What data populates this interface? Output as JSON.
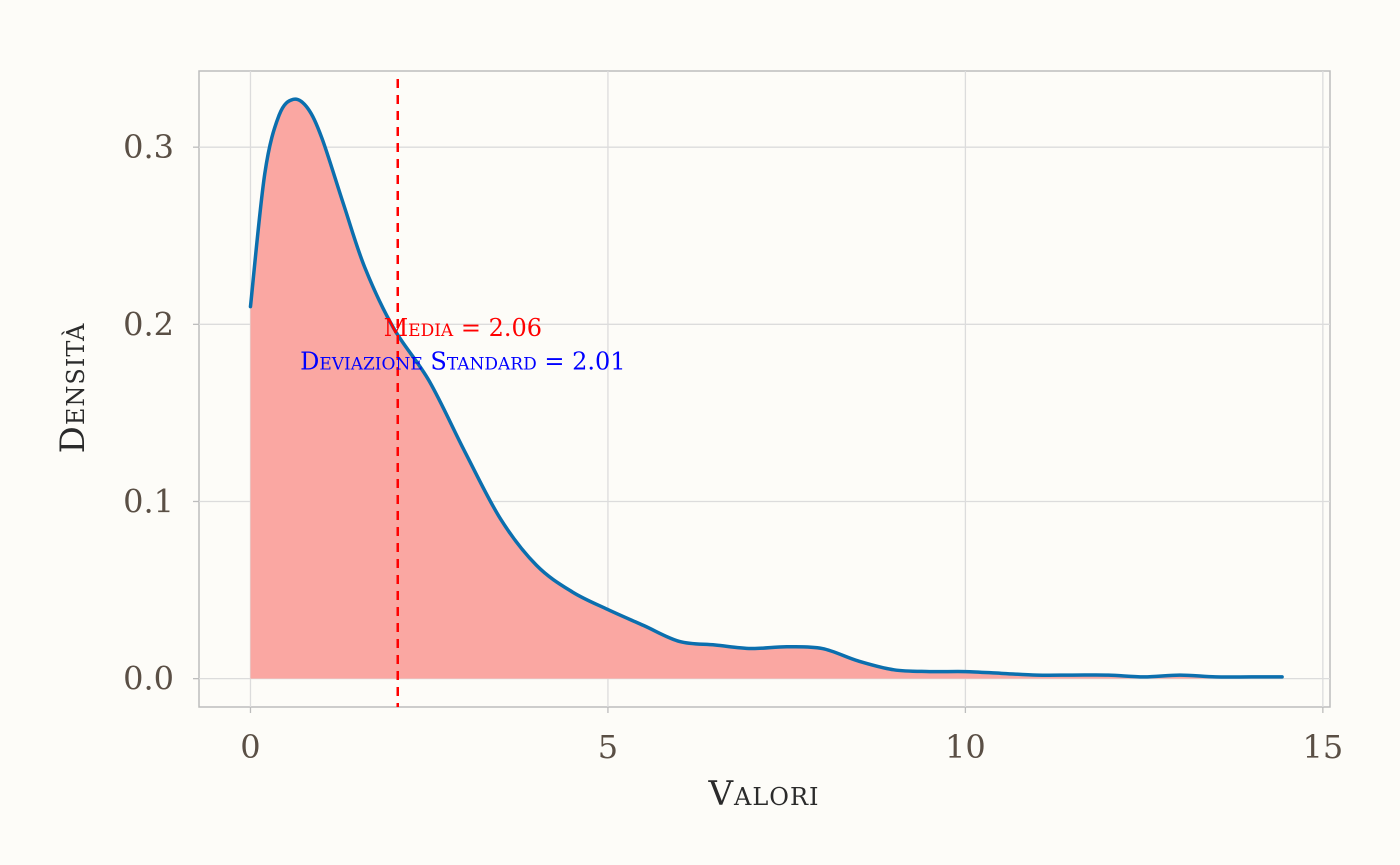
{
  "chart_data": {
    "type": "area",
    "xlabel": "Valori",
    "ylabel": "Densità",
    "xlim": [
      -0.72,
      15.1
    ],
    "ylim": [
      -0.016,
      0.343
    ],
    "x_ticks": [
      0,
      5,
      10,
      15
    ],
    "x_tick_labels": [
      "0",
      "5",
      "10",
      "15"
    ],
    "y_ticks": [
      0.0,
      0.1,
      0.2,
      0.3
    ],
    "y_tick_labels": [
      "0.0",
      "0.1",
      "0.2",
      "0.3"
    ],
    "grid": true,
    "series": [
      {
        "x": [
          0.0,
          0.2,
          0.4,
          0.6,
          0.8,
          1.0,
          1.3,
          1.6,
          2.0,
          2.5,
          3.0,
          3.5,
          4.0,
          4.5,
          5.0,
          5.5,
          6.0,
          6.5,
          7.0,
          7.5,
          8.0,
          8.5,
          9.0,
          9.5,
          10.0,
          10.5,
          11.0,
          11.5,
          12.0,
          12.5,
          13.0,
          13.5,
          14.0,
          14.43
        ],
        "y": [
          0.21,
          0.285,
          0.318,
          0.327,
          0.322,
          0.305,
          0.268,
          0.232,
          0.198,
          0.168,
          0.128,
          0.09,
          0.064,
          0.049,
          0.039,
          0.03,
          0.021,
          0.019,
          0.017,
          0.018,
          0.017,
          0.01,
          0.005,
          0.004,
          0.004,
          0.003,
          0.002,
          0.002,
          0.002,
          0.001,
          0.002,
          0.001,
          0.001,
          0.001
        ],
        "line_color": "#0b6fae",
        "fill_color": "#faa7a2"
      }
    ],
    "mean_line": {
      "x": 2.06,
      "color": "#ff0000",
      "style": "dashed"
    },
    "annotations": [
      {
        "text": "Media = 2.06",
        "x": 2.97,
        "y": 0.198,
        "color": "#ff0000"
      },
      {
        "text": "Deviazione Standard = 2.01",
        "x": 2.97,
        "y": 0.179,
        "color": "#0000ff"
      }
    ]
  }
}
